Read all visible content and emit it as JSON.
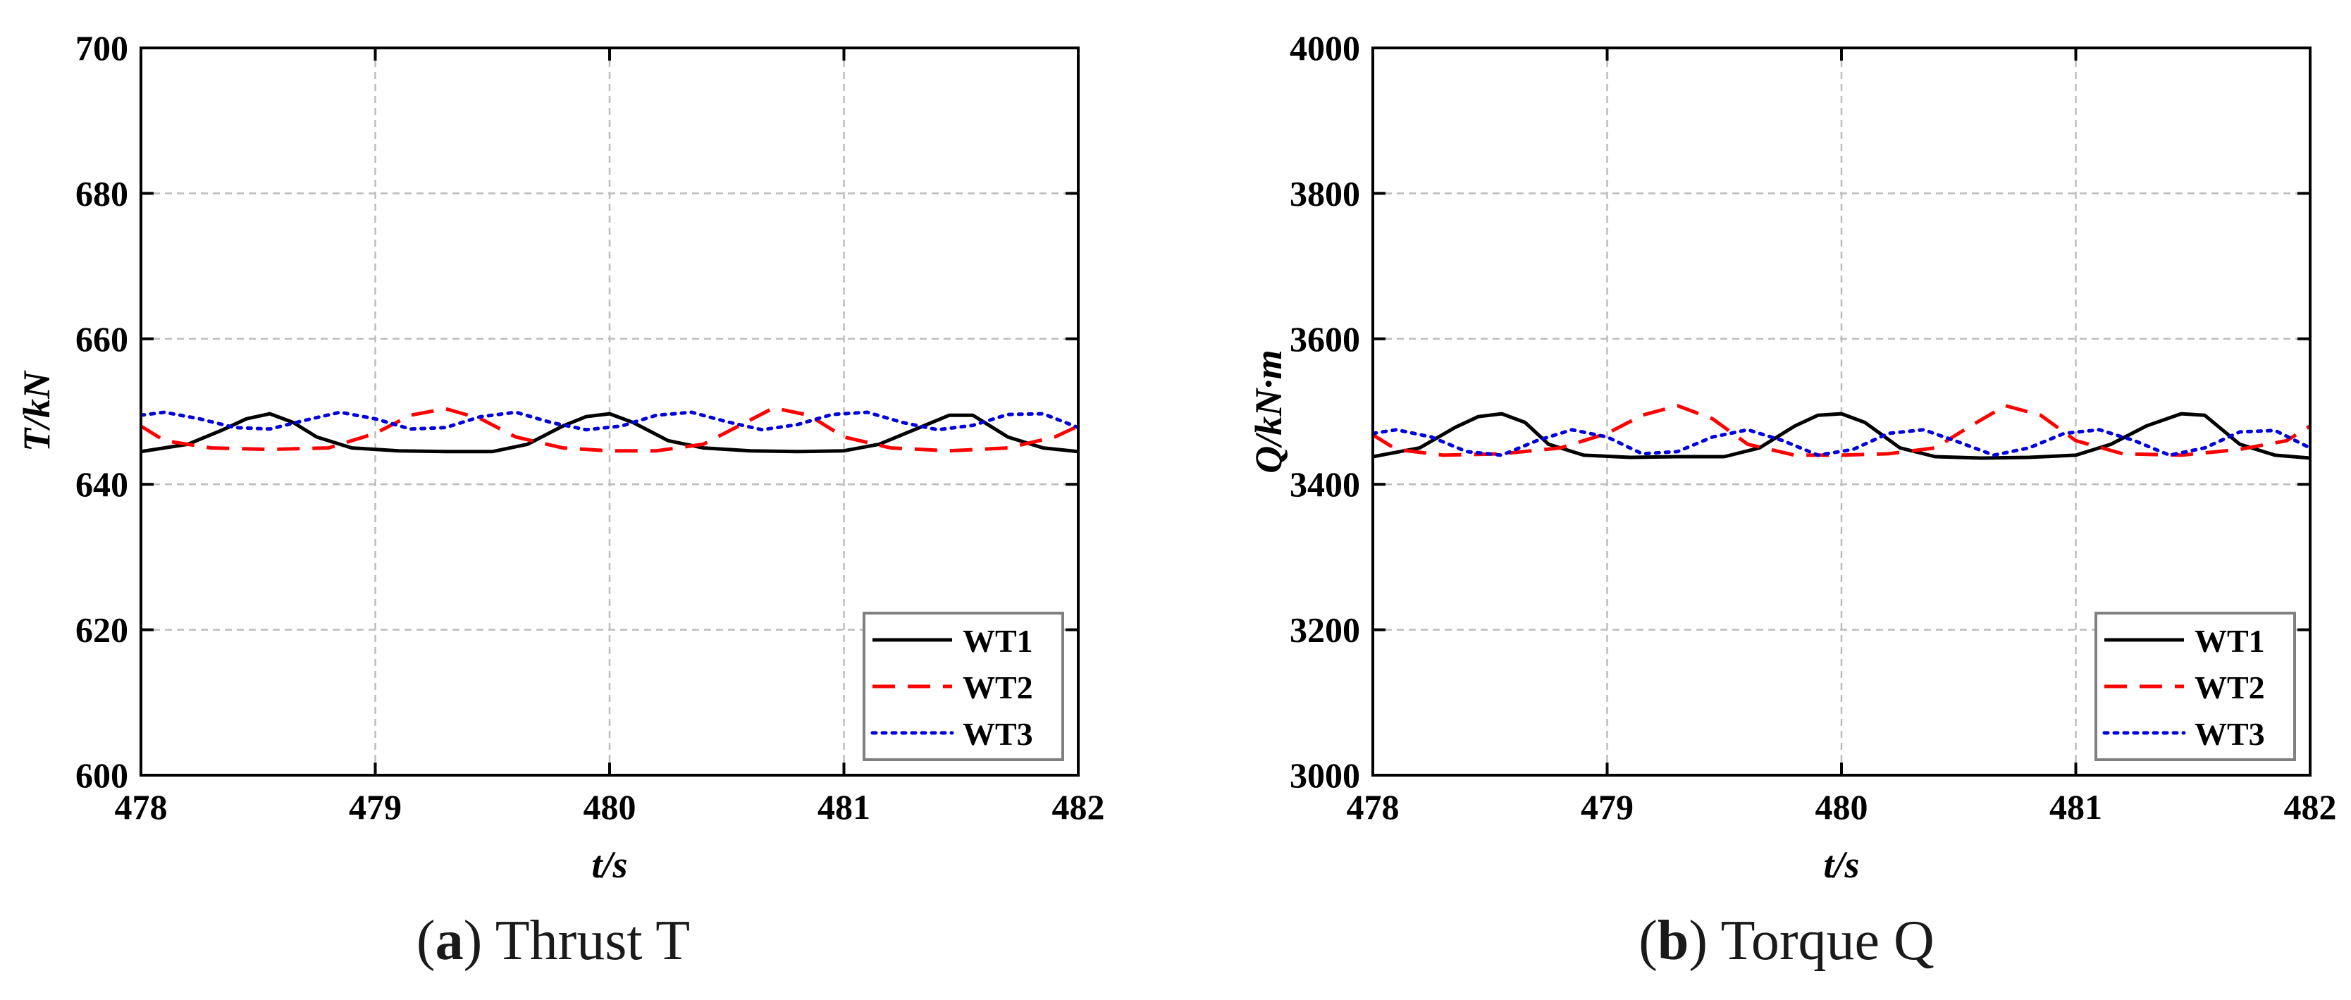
{
  "chart_data": [
    {
      "type": "line",
      "panel": "a",
      "caption_letter": "a",
      "caption_text": "Thrust T",
      "xlabel": "t/s",
      "ylabel": "T/kN",
      "xlim": [
        478,
        482
      ],
      "ylim": [
        600,
        700
      ],
      "xticks": [
        478,
        479,
        480,
        481,
        482
      ],
      "yticks": [
        600,
        620,
        640,
        660,
        680,
        700
      ],
      "grid": true,
      "legend_position": "bottom-right",
      "series": [
        {
          "name": "WT1",
          "color": "#000000",
          "style": "solid",
          "x": [
            478.0,
            478.2,
            478.35,
            478.45,
            478.55,
            478.65,
            478.75,
            478.9,
            479.1,
            479.3,
            479.5,
            479.65,
            479.8,
            479.9,
            480.0,
            480.1,
            480.25,
            480.4,
            480.6,
            480.8,
            481.0,
            481.15,
            481.3,
            481.45,
            481.55,
            481.7,
            481.85,
            482.0
          ],
          "y": [
            644.5,
            645.5,
            647.5,
            649.0,
            649.7,
            648.5,
            646.5,
            645.0,
            644.6,
            644.5,
            644.5,
            645.5,
            648.0,
            649.3,
            649.7,
            648.5,
            646.0,
            645.0,
            644.6,
            644.5,
            644.6,
            645.5,
            647.5,
            649.5,
            649.5,
            646.5,
            645.0,
            644.5
          ]
        },
        {
          "name": "WT2",
          "color": "#ff0000",
          "style": "dashed",
          "x": [
            478.0,
            478.1,
            478.3,
            478.55,
            478.8,
            479.0,
            479.15,
            479.3,
            479.45,
            479.6,
            479.8,
            480.0,
            480.2,
            480.4,
            480.55,
            480.7,
            480.85,
            481.0,
            481.2,
            481.45,
            481.7,
            481.9,
            482.0
          ],
          "y": [
            648.0,
            646.0,
            645.0,
            644.8,
            645.0,
            647.0,
            649.5,
            650.4,
            649.0,
            646.5,
            645.0,
            644.6,
            644.6,
            645.5,
            648.0,
            650.5,
            649.5,
            646.5,
            645.0,
            644.6,
            645.0,
            646.5,
            648.0
          ]
        },
        {
          "name": "WT3",
          "color": "#0000dd",
          "style": "dotted",
          "x": [
            478.0,
            478.1,
            478.25,
            478.4,
            478.55,
            478.7,
            478.85,
            479.0,
            479.15,
            479.3,
            479.45,
            479.6,
            479.75,
            479.9,
            480.05,
            480.2,
            480.35,
            480.5,
            480.65,
            480.8,
            480.95,
            481.1,
            481.25,
            481.4,
            481.55,
            481.7,
            481.85,
            482.0
          ],
          "y": [
            649.5,
            649.9,
            649.0,
            647.8,
            647.6,
            648.8,
            649.9,
            649.0,
            647.6,
            647.8,
            649.3,
            649.9,
            648.5,
            647.5,
            648.0,
            649.5,
            649.9,
            648.6,
            647.5,
            648.2,
            649.6,
            649.9,
            648.5,
            647.5,
            648.1,
            649.6,
            649.7,
            647.8
          ]
        }
      ]
    },
    {
      "type": "line",
      "panel": "b",
      "caption_letter": "b",
      "caption_text": "Torque Q",
      "xlabel": "t/s",
      "ylabel": "Q/kN·m",
      "xlim": [
        478,
        482
      ],
      "ylim": [
        3000,
        4000
      ],
      "xticks": [
        478,
        479,
        480,
        481,
        482
      ],
      "yticks": [
        3000,
        3200,
        3400,
        3600,
        3800,
        4000
      ],
      "grid": true,
      "legend_position": "bottom-right",
      "series": [
        {
          "name": "WT1",
          "color": "#000000",
          "style": "solid",
          "x": [
            478.0,
            478.2,
            478.35,
            478.45,
            478.55,
            478.65,
            478.75,
            478.9,
            479.1,
            479.3,
            479.5,
            479.65,
            479.8,
            479.9,
            480.0,
            480.1,
            480.25,
            480.4,
            480.6,
            480.8,
            481.0,
            481.15,
            481.3,
            481.45,
            481.55,
            481.7,
            481.85,
            482.0
          ],
          "y": [
            3438,
            3450,
            3478,
            3493,
            3497,
            3485,
            3455,
            3440,
            3437,
            3438,
            3438,
            3450,
            3480,
            3495,
            3497,
            3485,
            3450,
            3438,
            3436,
            3437,
            3440,
            3455,
            3480,
            3497,
            3495,
            3455,
            3440,
            3436
          ]
        },
        {
          "name": "WT2",
          "color": "#ff0000",
          "style": "dashed",
          "x": [
            478.0,
            478.1,
            478.3,
            478.55,
            478.8,
            479.0,
            479.15,
            479.3,
            479.45,
            479.6,
            479.8,
            480.0,
            480.2,
            480.4,
            480.55,
            480.7,
            480.85,
            481.0,
            481.2,
            481.45,
            481.7,
            481.9,
            482.0
          ],
          "y": [
            3468,
            3448,
            3440,
            3442,
            3450,
            3470,
            3495,
            3508,
            3490,
            3455,
            3440,
            3440,
            3442,
            3450,
            3480,
            3508,
            3495,
            3460,
            3442,
            3440,
            3448,
            3460,
            3480
          ]
        },
        {
          "name": "WT3",
          "color": "#0000dd",
          "style": "dotted",
          "x": [
            478.0,
            478.1,
            478.25,
            478.4,
            478.55,
            478.7,
            478.85,
            479.0,
            479.15,
            479.3,
            479.45,
            479.6,
            479.75,
            479.9,
            480.05,
            480.2,
            480.35,
            480.5,
            480.65,
            480.8,
            480.95,
            481.1,
            481.25,
            481.4,
            481.55,
            481.7,
            481.85,
            482.0
          ],
          "y": [
            3470,
            3475,
            3465,
            3445,
            3440,
            3460,
            3475,
            3465,
            3442,
            3445,
            3465,
            3475,
            3460,
            3440,
            3448,
            3470,
            3475,
            3458,
            3440,
            3450,
            3470,
            3475,
            3460,
            3440,
            3450,
            3472,
            3474,
            3450
          ]
        }
      ]
    }
  ]
}
